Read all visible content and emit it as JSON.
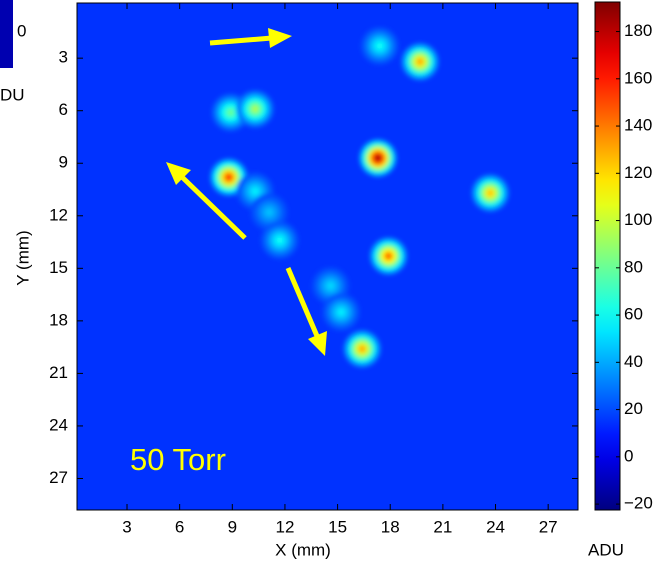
{
  "chart_data": {
    "type": "heatmap",
    "xlabel": "X (mm)",
    "ylabel": "Y (mm)",
    "xlim": [
      0.15,
      28.7
    ],
    "ylim": [
      -0.15,
      28.8
    ],
    "xticks": [
      3,
      6,
      9,
      12,
      15,
      18,
      21,
      24,
      27
    ],
    "yticks": [
      3,
      6,
      9,
      12,
      15,
      18,
      21,
      24,
      27
    ],
    "colormap": "jet",
    "clim": [
      -22.5,
      192.5
    ],
    "cticks": [
      {
        "value": -20,
        "label": "−20"
      },
      0,
      20,
      40,
      60,
      80,
      100,
      120,
      140,
      160,
      180
    ],
    "colorbar_label": "ADU",
    "background": 15,
    "spots": [
      {
        "x": 17.4,
        "y": 2.3,
        "value": 60
      },
      {
        "x": 19.7,
        "y": 3.2,
        "value": 130
      },
      {
        "x": 8.9,
        "y": 6.1,
        "value": 80
      },
      {
        "x": 10.3,
        "y": 5.9,
        "value": 95
      },
      {
        "x": 17.3,
        "y": 8.7,
        "value": 185
      },
      {
        "x": 8.8,
        "y": 9.8,
        "value": 155
      },
      {
        "x": 10.3,
        "y": 10.6,
        "value": 55
      },
      {
        "x": 11.1,
        "y": 11.8,
        "value": 45
      },
      {
        "x": 11.7,
        "y": 13.4,
        "value": 60
      },
      {
        "x": 23.7,
        "y": 10.7,
        "value": 125
      },
      {
        "x": 17.9,
        "y": 14.3,
        "value": 145
      },
      {
        "x": 14.6,
        "y": 16.0,
        "value": 50
      },
      {
        "x": 15.2,
        "y": 17.5,
        "value": 55
      },
      {
        "x": 16.4,
        "y": 19.6,
        "value": 130
      }
    ],
    "annotation": "50 Torr",
    "annotation_color": "#ffff00"
  },
  "inset_fragment": {
    "tick": "0",
    "label": "DU"
  }
}
